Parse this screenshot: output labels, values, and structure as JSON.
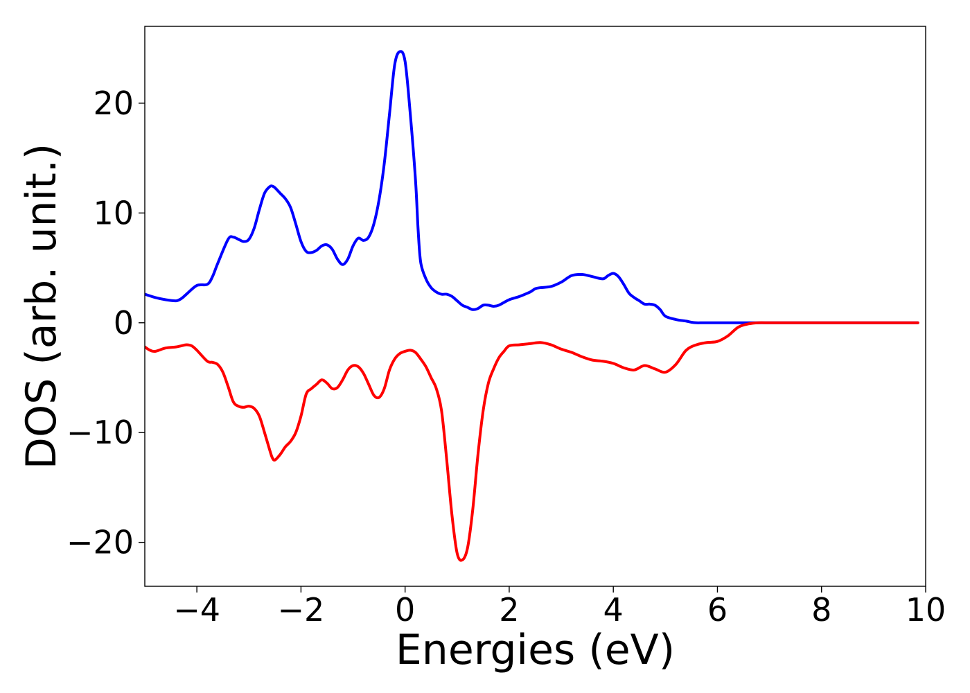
{
  "chart_data": {
    "type": "line",
    "title": "",
    "xlabel": "Energies (eV)",
    "ylabel": "DOS (arb. unit.)",
    "xlim": [
      -5,
      10
    ],
    "ylim": [
      -24,
      27
    ],
    "grid": false,
    "legend": "none",
    "x_ticks": [
      -4,
      -2,
      0,
      2,
      4,
      6,
      8,
      10
    ],
    "x_tick_labels": [
      "−4",
      "−2",
      "0",
      "2",
      "4",
      "6",
      "8",
      "10"
    ],
    "y_ticks": [
      -20,
      -10,
      0,
      10,
      20
    ],
    "y_tick_labels": [
      "−20",
      "−10",
      "0",
      "10",
      "20"
    ],
    "series": [
      {
        "color": "#0000ff",
        "x": [
          -5.0,
          -4.8,
          -4.6,
          -4.4,
          -4.3,
          -4.2,
          -4.0,
          -3.8,
          -3.7,
          -3.6,
          -3.4,
          -3.3,
          -3.2,
          -3.1,
          -3.0,
          -2.9,
          -2.8,
          -2.7,
          -2.6,
          -2.55,
          -2.5,
          -2.4,
          -2.3,
          -2.2,
          -2.1,
          -2.0,
          -1.9,
          -1.8,
          -1.7,
          -1.6,
          -1.5,
          -1.4,
          -1.3,
          -1.2,
          -1.1,
          -1.0,
          -0.9,
          -0.8,
          -0.7,
          -0.6,
          -0.5,
          -0.4,
          -0.3,
          -0.2,
          -0.1,
          0.0,
          0.1,
          0.2,
          0.25,
          0.3,
          0.4,
          0.5,
          0.6,
          0.7,
          0.8,
          0.9,
          1.0,
          1.1,
          1.2,
          1.3,
          1.4,
          1.5,
          1.6,
          1.7,
          1.8,
          2.0,
          2.2,
          2.4,
          2.5,
          2.6,
          2.8,
          3.0,
          3.2,
          3.4,
          3.6,
          3.8,
          3.9,
          4.0,
          4.1,
          4.2,
          4.3,
          4.4,
          4.5,
          4.6,
          4.7,
          4.8,
          4.9,
          5.0,
          5.2,
          5.4,
          5.5,
          5.6,
          5.7,
          5.8,
          5.9,
          6.0,
          6.2,
          6.4,
          6.6,
          6.8,
          7.0,
          8.0,
          9.0,
          9.85
        ],
        "y": [
          2.6,
          2.3,
          2.1,
          2.0,
          2.2,
          2.6,
          3.4,
          3.5,
          4.2,
          5.4,
          7.6,
          7.8,
          7.6,
          7.4,
          7.6,
          8.6,
          10.3,
          11.8,
          12.4,
          12.45,
          12.3,
          11.8,
          11.3,
          10.5,
          9.0,
          7.4,
          6.5,
          6.4,
          6.6,
          7.0,
          7.1,
          6.7,
          5.8,
          5.3,
          5.8,
          7.0,
          7.7,
          7.5,
          7.8,
          9.0,
          11.2,
          14.5,
          19.0,
          23.5,
          24.7,
          23.8,
          19.0,
          13.0,
          8.5,
          5.5,
          4.0,
          3.2,
          2.8,
          2.6,
          2.6,
          2.4,
          2.0,
          1.6,
          1.4,
          1.2,
          1.3,
          1.6,
          1.6,
          1.5,
          1.6,
          2.1,
          2.4,
          2.8,
          3.1,
          3.2,
          3.3,
          3.7,
          4.3,
          4.4,
          4.2,
          4.0,
          4.3,
          4.5,
          4.2,
          3.5,
          2.7,
          2.3,
          2.0,
          1.7,
          1.7,
          1.6,
          1.2,
          0.6,
          0.3,
          0.15,
          0.05,
          0.0,
          0.0,
          0.0,
          0.0,
          0.0,
          0.0,
          0.0,
          0.0,
          0.0,
          0.0,
          0.0,
          0.0,
          0.0
        ]
      },
      {
        "color": "#ff0000",
        "x": [
          -5.0,
          -4.9,
          -4.8,
          -4.6,
          -4.4,
          -4.3,
          -4.2,
          -4.1,
          -4.0,
          -3.8,
          -3.7,
          -3.6,
          -3.5,
          -3.4,
          -3.3,
          -3.2,
          -3.1,
          -3.0,
          -2.9,
          -2.8,
          -2.7,
          -2.6,
          -2.55,
          -2.5,
          -2.4,
          -2.3,
          -2.2,
          -2.1,
          -2.0,
          -1.9,
          -1.8,
          -1.7,
          -1.6,
          -1.5,
          -1.4,
          -1.3,
          -1.2,
          -1.1,
          -1.0,
          -0.9,
          -0.8,
          -0.7,
          -0.6,
          -0.5,
          -0.4,
          -0.3,
          -0.2,
          -0.1,
          0.0,
          0.1,
          0.2,
          0.3,
          0.4,
          0.5,
          0.6,
          0.7,
          0.8,
          0.9,
          1.0,
          1.1,
          1.2,
          1.3,
          1.4,
          1.5,
          1.6,
          1.7,
          1.8,
          1.9,
          2.0,
          2.2,
          2.4,
          2.6,
          2.8,
          3.0,
          3.2,
          3.4,
          3.6,
          3.8,
          4.0,
          4.2,
          4.4,
          4.6,
          4.8,
          5.0,
          5.2,
          5.4,
          5.6,
          5.8,
          6.0,
          6.2,
          6.4,
          6.6,
          6.8,
          7.0,
          8.0,
          9.0,
          9.85
        ],
        "y": [
          -2.2,
          -2.5,
          -2.6,
          -2.3,
          -2.2,
          -2.1,
          -2.0,
          -2.1,
          -2.5,
          -3.5,
          -3.6,
          -3.8,
          -4.5,
          -5.8,
          -7.2,
          -7.6,
          -7.7,
          -7.6,
          -7.8,
          -8.5,
          -10.0,
          -11.6,
          -12.3,
          -12.5,
          -12.0,
          -11.3,
          -10.8,
          -10.0,
          -8.5,
          -6.5,
          -6.0,
          -5.6,
          -5.2,
          -5.5,
          -6.0,
          -5.9,
          -5.2,
          -4.3,
          -3.9,
          -4.0,
          -4.6,
          -5.6,
          -6.6,
          -6.8,
          -6.0,
          -4.3,
          -3.3,
          -2.8,
          -2.6,
          -2.5,
          -2.7,
          -3.3,
          -4.0,
          -5.0,
          -6.0,
          -8.0,
          -12.5,
          -17.5,
          -21.0,
          -21.6,
          -20.5,
          -17.0,
          -12.0,
          -8.0,
          -5.5,
          -4.2,
          -3.2,
          -2.6,
          -2.1,
          -2.0,
          -1.9,
          -1.8,
          -2.0,
          -2.4,
          -2.7,
          -3.1,
          -3.4,
          -3.5,
          -3.7,
          -4.1,
          -4.3,
          -3.9,
          -4.2,
          -4.5,
          -3.8,
          -2.5,
          -2.0,
          -1.8,
          -1.7,
          -1.2,
          -0.4,
          -0.1,
          0.0,
          0.0,
          0.0,
          0.0,
          0.0
        ]
      }
    ]
  }
}
